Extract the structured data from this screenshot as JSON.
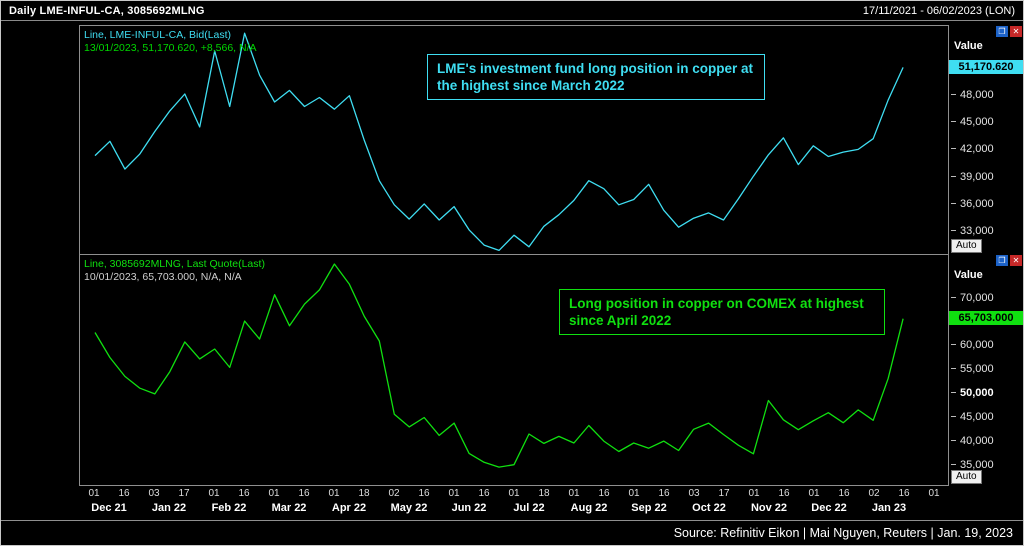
{
  "title_bar": {
    "title": "Daily LME-INFUL-CA, 3085692MLNG",
    "date_range": "17/11/2021 - 06/02/2023 (LON)"
  },
  "footer": {
    "source": "Source: Refinitiv Eikon | Mai Nguyen, Reuters | Jan. 19, 2023"
  },
  "colors": {
    "cyan": "#3fdef2",
    "green": "#10e010",
    "quoteGreen": "#00d700",
    "quoteGray": "#cfcfcf"
  },
  "icons": {
    "restore": "❐",
    "close": "✕"
  },
  "panels": [
    {
      "legend_instrument": "Line, LME-INFUL-CA, Bid(Last)",
      "legend_quote": "13/01/2023, 51,170.620, +8,566, N/A",
      "value_axis_label": "Value",
      "auto_button": "Auto",
      "last_value_badge": "51,170.620",
      "annotation": "LME's investment fund long position in copper at the highest since March 2022"
    },
    {
      "legend_instrument": "Line, 3085692MLNG, Last Quote(Last)",
      "legend_quote": "10/01/2023, 65,703.000, N/A, N/A",
      "value_axis_label": "Value",
      "auto_button": "Auto",
      "last_value_badge": "65,703.000",
      "annotation": "Long position in copper on COMEX at highest since April 2022"
    }
  ],
  "chart_data": [
    {
      "type": "line",
      "title": "LME's investment fund long position in copper at the highest since March 2022",
      "ylabel": "Value",
      "ylim": [
        30300,
        55800
      ],
      "yticks": [
        48000,
        45000,
        42000,
        39000,
        36000,
        33000
      ],
      "ytick_labels": [
        "48,000",
        "45,000",
        "42,000",
        "39,000",
        "36,000",
        "33,000"
      ],
      "last_date": "13/01/2023",
      "last_value": 51170.62,
      "last_value_label": "51,170.620",
      "x_total_ticks": 29,
      "x_span_ticks": 27,
      "x_tick_labels": [
        "01",
        "16",
        "03",
        "17",
        "01",
        "16",
        "01",
        "16",
        "01",
        "18",
        "02",
        "16",
        "01",
        "16",
        "01",
        "18",
        "01",
        "16",
        "01",
        "16",
        "03",
        "17",
        "01",
        "16",
        "01",
        "16",
        "02",
        "16",
        "01"
      ],
      "month_labels": [
        "Dec 21",
        "Jan 22",
        "Feb 22",
        "Mar 22",
        "Apr 22",
        "May 22",
        "Jun 22",
        "Jul 22",
        "Aug 22",
        "Sep 22",
        "Oct 22",
        "Nov 22",
        "Dec 22",
        "Jan 23"
      ],
      "series": [
        {
          "name": "LME-INFUL-CA Bid(Last)",
          "color": "#3fdef2",
          "values": [
            41300,
            42900,
            39800,
            41500,
            44000,
            46300,
            48200,
            44500,
            53000,
            46800,
            55000,
            50300,
            47300,
            48600,
            46800,
            47800,
            46500,
            48000,
            43000,
            38500,
            35800,
            34200,
            35900,
            34100,
            35600,
            33000,
            31300,
            30700,
            32400,
            31100,
            33400,
            34700,
            36300,
            38500,
            37600,
            35800,
            36400,
            38100,
            35200,
            33300,
            34300,
            34900,
            34100,
            36500,
            39000,
            41400,
            43300,
            40300,
            42400,
            41200,
            41700,
            42000,
            43200,
            47500,
            51170.62
          ]
        }
      ]
    },
    {
      "type": "line",
      "title": "Long position in copper on COMEX at highest since April 2022",
      "ylabel": "Value",
      "ylim": [
        30500,
        79200
      ],
      "yticks": [
        70000,
        60000,
        55000,
        50000,
        45000,
        40000,
        35000
      ],
      "ytick_labels": [
        "70,000",
        "60,000",
        "55,000",
        "50,000",
        "45,000",
        "40,000",
        "35,000"
      ],
      "bold_tick": 50000,
      "last_date": "10/01/2023",
      "last_value": 65703,
      "last_value_label": "65,703.000",
      "x_total_ticks": 29,
      "x_span_ticks": 27,
      "x_tick_labels": [
        "01",
        "16",
        "03",
        "17",
        "01",
        "16",
        "01",
        "16",
        "01",
        "18",
        "02",
        "16",
        "01",
        "16",
        "01",
        "18",
        "01",
        "16",
        "01",
        "16",
        "03",
        "17",
        "01",
        "16",
        "01",
        "16",
        "02",
        "16",
        "01"
      ],
      "month_labels": [
        "Dec 21",
        "Jan 22",
        "Feb 22",
        "Mar 22",
        "Apr 22",
        "May 22",
        "Jun 22",
        "Jul 22",
        "Aug 22",
        "Sep 22",
        "Oct 22",
        "Nov 22",
        "Dec 22",
        "Jan 23"
      ],
      "series": [
        {
          "name": "3085692MLNG Last Quote(Last)",
          "color": "#10e010",
          "values": [
            62800,
            57500,
            53500,
            51000,
            49800,
            54500,
            60800,
            57200,
            59300,
            55400,
            65200,
            61400,
            70800,
            64200,
            68800,
            71800,
            77300,
            73000,
            66200,
            61000,
            45500,
            42800,
            44800,
            41000,
            43600,
            37200,
            35300,
            34300,
            34800,
            41300,
            39300,
            40800,
            39400,
            43100,
            39800,
            37600,
            39400,
            38300,
            39800,
            37800,
            42300,
            43600,
            41200,
            38900,
            37100,
            48400,
            44300,
            42200,
            44100,
            45800,
            43700,
            46400,
            44200,
            53000,
            65703
          ]
        }
      ]
    }
  ]
}
